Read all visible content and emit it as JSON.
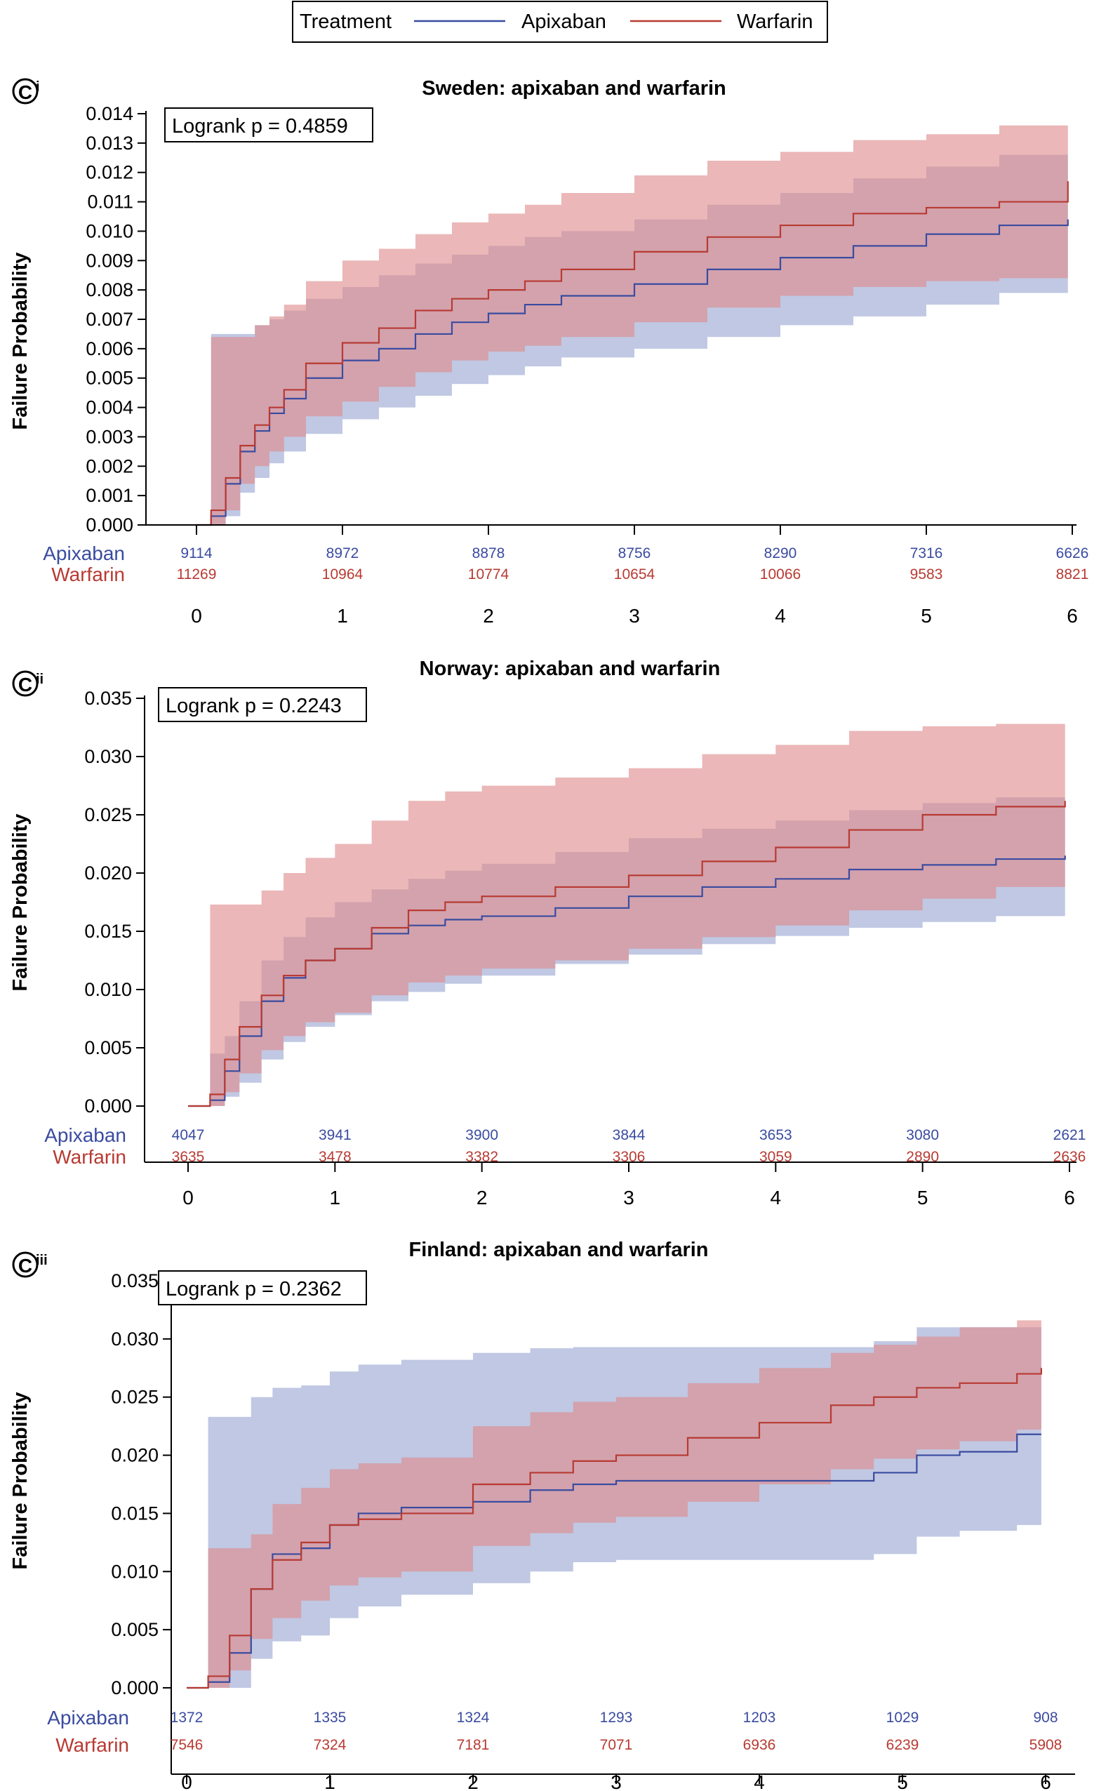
{
  "legend": {
    "title": "Treatment",
    "items": [
      {
        "label": "Apixaban",
        "color": "#3a4ba0"
      },
      {
        "label": "Warfarin",
        "color": "#b83a32"
      }
    ]
  },
  "colors": {
    "apixaban_line": "#3a4ba0",
    "apixaban_band": "#9aa6d2",
    "warfarin_line": "#b83a32",
    "warfarin_band": "#df8a8c",
    "axis": "#000000"
  },
  "chart_data": [
    {
      "type": "line",
      "panel_letter": "C",
      "panel_roman": "i",
      "title": "Sweden: apixaban and warfarin",
      "ylabel": "Failure Probability",
      "xlabel": "",
      "xlim": [
        0,
        6
      ],
      "ylim": [
        0,
        0.014
      ],
      "x_ticks": [
        0,
        1,
        2,
        3,
        4,
        5,
        6
      ],
      "y_ticks": [
        "0.000",
        "0.001",
        "0.002",
        "0.003",
        "0.004",
        "0.005",
        "0.006",
        "0.007",
        "0.008",
        "0.009",
        "0.010",
        "0.011",
        "0.012",
        "0.013",
        "0.014"
      ],
      "logrank": "Logrank p = 0.4859",
      "risk_table": {
        "times": [
          0,
          1,
          2,
          3,
          4,
          5,
          6
        ],
        "rows": [
          {
            "label": "Apixaban",
            "values": [
              "9114",
              "8972",
              "8878",
              "8756",
              "8290",
              "7316",
              "6626"
            ]
          },
          {
            "label": "Warfarin",
            "values": [
              "11269",
              "10964",
              "10774",
              "10654",
              "10066",
              "9583",
              "8821"
            ]
          }
        ]
      },
      "series": [
        {
          "name": "Apixaban",
          "x": [
            0,
            0.1,
            0.2,
            0.3,
            0.4,
            0.5,
            0.6,
            0.75,
            1.0,
            1.25,
            1.5,
            1.75,
            2.0,
            2.25,
            2.5,
            3.0,
            3.5,
            4.0,
            4.5,
            5.0,
            5.5,
            5.97
          ],
          "y": [
            0,
            0.0003,
            0.0014,
            0.0025,
            0.0032,
            0.0038,
            0.0043,
            0.005,
            0.0056,
            0.006,
            0.0065,
            0.0069,
            0.0072,
            0.0075,
            0.0078,
            0.0082,
            0.0087,
            0.0091,
            0.0095,
            0.0099,
            0.0102,
            0.0104
          ],
          "lower": [
            0,
            0,
            0.0003,
            0.0011,
            0.0016,
            0.0021,
            0.0025,
            0.0031,
            0.0036,
            0.004,
            0.0044,
            0.0048,
            0.0051,
            0.0054,
            0.0057,
            0.006,
            0.0064,
            0.0068,
            0.0071,
            0.0075,
            0.0079,
            0.0082
          ],
          "upper": [
            0,
            0.0065,
            0.0065,
            0.0065,
            0.0068,
            0.007,
            0.0073,
            0.0077,
            0.0081,
            0.0085,
            0.0089,
            0.0092,
            0.0095,
            0.0098,
            0.01,
            0.0104,
            0.0109,
            0.0113,
            0.0118,
            0.0122,
            0.0126,
            0.0131
          ]
        },
        {
          "name": "Warfarin",
          "x": [
            0,
            0.1,
            0.2,
            0.3,
            0.4,
            0.5,
            0.6,
            0.75,
            1.0,
            1.25,
            1.5,
            1.75,
            2.0,
            2.25,
            2.5,
            3.0,
            3.5,
            4.0,
            4.5,
            5.0,
            5.5,
            5.97
          ],
          "y": [
            0,
            0.0005,
            0.0016,
            0.0027,
            0.0034,
            0.004,
            0.0046,
            0.0055,
            0.0062,
            0.0067,
            0.0073,
            0.0077,
            0.008,
            0.0083,
            0.0087,
            0.0093,
            0.0098,
            0.0102,
            0.0106,
            0.0108,
            0.011,
            0.0117
          ],
          "lower": [
            0,
            0,
            0.0005,
            0.0014,
            0.002,
            0.0025,
            0.003,
            0.0037,
            0.0042,
            0.0047,
            0.0052,
            0.0056,
            0.0059,
            0.0061,
            0.0064,
            0.0069,
            0.0074,
            0.0078,
            0.0081,
            0.0083,
            0.0084,
            0.0085
          ],
          "upper": [
            0,
            0.0064,
            0.0064,
            0.0064,
            0.0068,
            0.0071,
            0.0075,
            0.0083,
            0.009,
            0.0094,
            0.0099,
            0.0103,
            0.0106,
            0.0109,
            0.0113,
            0.0119,
            0.0124,
            0.0127,
            0.0131,
            0.0133,
            0.0136,
            0.0141
          ]
        }
      ]
    },
    {
      "type": "line",
      "panel_letter": "C",
      "panel_roman": "ii",
      "title": "Norway: apixaban and warfarin",
      "ylabel": "Failure Probability",
      "xlabel": "",
      "xlim": [
        0,
        6
      ],
      "ylim": [
        0,
        0.035
      ],
      "x_ticks": [
        0,
        1,
        2,
        3,
        4,
        5,
        6
      ],
      "y_ticks": [
        "0.000",
        "0.005",
        "0.010",
        "0.015",
        "0.020",
        "0.025",
        "0.030",
        "0.035"
      ],
      "logrank": "Logrank p = 0.2243",
      "risk_table": {
        "times": [
          0,
          1,
          2,
          3,
          4,
          5,
          6
        ],
        "rows": [
          {
            "label": "Apixaban",
            "values": [
              "4047",
              "3941",
              "3900",
              "3844",
              "3653",
              "3080",
              "2621"
            ]
          },
          {
            "label": "Warfarin",
            "values": [
              "3635",
              "3478",
              "3382",
              "3306",
              "3059",
              "2890",
              "2636"
            ]
          }
        ]
      },
      "series": [
        {
          "name": "Apixaban",
          "x": [
            0,
            0.15,
            0.25,
            0.35,
            0.5,
            0.65,
            0.8,
            1.0,
            1.25,
            1.5,
            1.75,
            2.0,
            2.5,
            3.0,
            3.5,
            4.0,
            4.5,
            5.0,
            5.5,
            5.97
          ],
          "y": [
            0,
            0.0005,
            0.003,
            0.006,
            0.009,
            0.011,
            0.0125,
            0.0135,
            0.0148,
            0.0155,
            0.016,
            0.0163,
            0.017,
            0.018,
            0.0188,
            0.0195,
            0.0203,
            0.0207,
            0.0212,
            0.0215
          ],
          "lower": [
            0,
            0,
            0.0008,
            0.002,
            0.004,
            0.0055,
            0.0068,
            0.0078,
            0.009,
            0.0098,
            0.0105,
            0.0112,
            0.0122,
            0.013,
            0.0139,
            0.0146,
            0.0153,
            0.0158,
            0.0163,
            0.017
          ],
          "upper": [
            0,
            0.0045,
            0.006,
            0.009,
            0.0125,
            0.0145,
            0.0162,
            0.0175,
            0.0186,
            0.0195,
            0.0202,
            0.0208,
            0.0218,
            0.023,
            0.0238,
            0.0245,
            0.0254,
            0.026,
            0.0265,
            0.0268
          ]
        },
        {
          "name": "Warfarin",
          "x": [
            0,
            0.15,
            0.25,
            0.35,
            0.5,
            0.65,
            0.8,
            1.0,
            1.25,
            1.5,
            1.75,
            2.0,
            2.5,
            3.0,
            3.5,
            4.0,
            4.5,
            5.0,
            5.5,
            5.97
          ],
          "y": [
            0,
            0.001,
            0.004,
            0.0068,
            0.0095,
            0.0112,
            0.0125,
            0.0135,
            0.0153,
            0.0168,
            0.0175,
            0.018,
            0.0188,
            0.0198,
            0.021,
            0.0222,
            0.0237,
            0.025,
            0.0257,
            0.0262
          ],
          "lower": [
            0,
            0,
            0.0012,
            0.0028,
            0.0048,
            0.006,
            0.0072,
            0.008,
            0.0095,
            0.0106,
            0.0112,
            0.0118,
            0.0125,
            0.0135,
            0.0145,
            0.0155,
            0.0168,
            0.0178,
            0.0188,
            0.02
          ],
          "upper": [
            0,
            0.0173,
            0.0173,
            0.0173,
            0.0185,
            0.02,
            0.0213,
            0.0225,
            0.0245,
            0.0262,
            0.027,
            0.0275,
            0.0282,
            0.029,
            0.0302,
            0.031,
            0.0322,
            0.0326,
            0.0328,
            0.033
          ]
        }
      ]
    },
    {
      "type": "line",
      "panel_letter": "C",
      "panel_roman": "iii",
      "title": "Finland: apixaban and warfarin",
      "ylabel": "Failure Probability",
      "xlabel": "",
      "xlim": [
        0,
        6
      ],
      "ylim": [
        0,
        0.035
      ],
      "x_ticks": [
        0,
        1,
        2,
        3,
        4,
        5,
        6
      ],
      "y_ticks": [
        "0.000",
        "0.005",
        "0.010",
        "0.015",
        "0.020",
        "0.025",
        "0.030",
        "0.035"
      ],
      "logrank": "Logrank p = 0.2362",
      "risk_table": {
        "times": [
          0,
          1,
          2,
          3,
          4,
          5,
          6
        ],
        "rows": [
          {
            "label": "Apixaban",
            "values": [
              "1372",
              "1335",
              "1324",
              "1293",
              "1203",
              "1029",
              "908"
            ]
          },
          {
            "label": "Warfarin",
            "values": [
              "7546",
              "7324",
              "7181",
              "7071",
              "6936",
              "6239",
              "5908"
            ]
          }
        ]
      },
      "series": [
        {
          "name": "Apixaban",
          "x": [
            0,
            0.15,
            0.3,
            0.45,
            0.6,
            0.8,
            1.0,
            1.2,
            1.5,
            2.0,
            2.4,
            2.7,
            3.0,
            3.5,
            4.0,
            4.5,
            4.8,
            5.1,
            5.4,
            5.8,
            5.97
          ],
          "y": [
            0,
            0.0005,
            0.003,
            0.0085,
            0.0115,
            0.012,
            0.014,
            0.015,
            0.0155,
            0.016,
            0.017,
            0.0175,
            0.0178,
            0.0178,
            0.0178,
            0.0178,
            0.0185,
            0.02,
            0.0203,
            0.0218,
            0.0218
          ],
          "lower": [
            0,
            0,
            0,
            0.0025,
            0.004,
            0.0045,
            0.006,
            0.007,
            0.008,
            0.009,
            0.01,
            0.0108,
            0.011,
            0.011,
            0.011,
            0.011,
            0.0115,
            0.013,
            0.0135,
            0.014,
            0.014
          ],
          "upper": [
            0,
            0.0233,
            0.0233,
            0.025,
            0.0258,
            0.026,
            0.0272,
            0.0278,
            0.0282,
            0.0288,
            0.0292,
            0.0293,
            0.0293,
            0.0293,
            0.0293,
            0.0293,
            0.0298,
            0.031,
            0.031,
            0.031,
            0.031
          ]
        },
        {
          "name": "Warfarin",
          "x": [
            0,
            0.15,
            0.3,
            0.45,
            0.6,
            0.8,
            1.0,
            1.2,
            1.5,
            2.0,
            2.4,
            2.7,
            3.0,
            3.5,
            4.0,
            4.5,
            4.8,
            5.1,
            5.4,
            5.8,
            5.97
          ],
          "y": [
            0,
            0.001,
            0.0045,
            0.0085,
            0.011,
            0.0125,
            0.014,
            0.0145,
            0.015,
            0.0175,
            0.0185,
            0.0195,
            0.02,
            0.0215,
            0.0228,
            0.0243,
            0.025,
            0.0258,
            0.0262,
            0.027,
            0.0275
          ],
          "lower": [
            0,
            0,
            0.0015,
            0.0042,
            0.006,
            0.0075,
            0.0088,
            0.0095,
            0.01,
            0.0122,
            0.0133,
            0.0142,
            0.0147,
            0.016,
            0.0175,
            0.0188,
            0.0197,
            0.0205,
            0.0212,
            0.0222,
            0.0232
          ],
          "upper": [
            0,
            0.012,
            0.012,
            0.0132,
            0.0158,
            0.0172,
            0.0188,
            0.0193,
            0.0198,
            0.0225,
            0.0237,
            0.0246,
            0.025,
            0.0262,
            0.0275,
            0.0288,
            0.0295,
            0.0302,
            0.031,
            0.0316,
            0.032
          ]
        }
      ]
    }
  ]
}
